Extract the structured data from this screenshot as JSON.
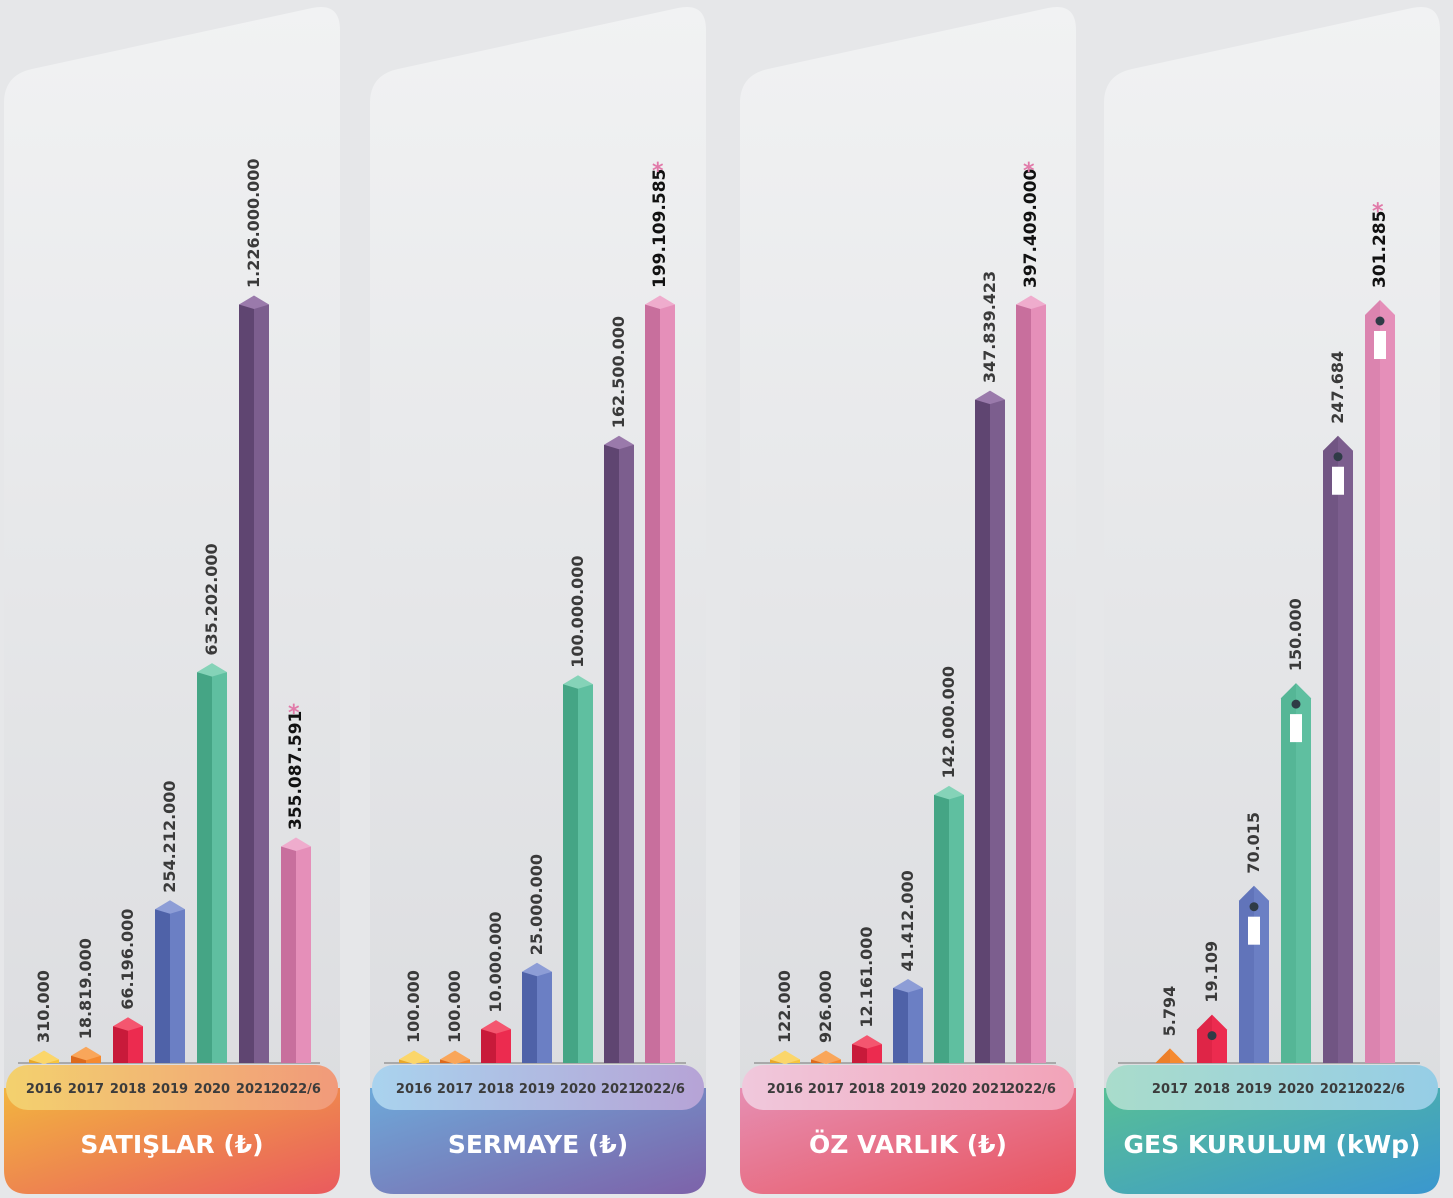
{
  "colors": {
    "2016": [
      "#f6c43e",
      "#e8a82a",
      "#fbd66a"
    ],
    "2017": [
      "#f58a30",
      "#dd6a1c",
      "#f9a65a"
    ],
    "2018": [
      "#ec2b4f",
      "#c81a3a",
      "#f4566f"
    ],
    "2019": [
      "#6b7fc4",
      "#4f62a8",
      "#8d9dd6"
    ],
    "2020": [
      "#5fbfa0",
      "#45a585",
      "#85d3b8"
    ],
    "2021": [
      "#7c5e8e",
      "#5f4571",
      "#9a7aab"
    ],
    "2022/6": [
      "#e58fb9",
      "#c86f9d",
      "#efaccd"
    ]
  },
  "chart_data": [
    {
      "type": "bar",
      "title": "SATIŞLAR (₺)",
      "categories": [
        "2016",
        "2017",
        "2018",
        "2019",
        "2020",
        "2021",
        "2022/6"
      ],
      "values": [
        310000,
        18819000,
        66196000,
        254212000,
        635202000,
        1226000000,
        355087591
      ],
      "labels": [
        "310.000",
        "18.819.000",
        "66.196.000",
        "254.212.000",
        "635.202.000",
        "1.226.000.000",
        "355.087.591"
      ],
      "starred": [
        false,
        false,
        false,
        false,
        false,
        false,
        true
      ],
      "headerColors": [
        "#f3d16e",
        "#f19a7a"
      ],
      "footerColors": [
        "#f2b53f",
        "#ea5a5e"
      ]
    },
    {
      "type": "bar",
      "title": "SERMAYE (₺)",
      "categories": [
        "2016",
        "2017",
        "2018",
        "2019",
        "2020",
        "2021",
        "2022/6"
      ],
      "values": [
        100000,
        100000,
        10000000,
        25000000,
        100000000,
        162500000,
        199109585
      ],
      "labels": [
        "100.000",
        "100.000",
        "10.000.000",
        "25.000.000",
        "100.000.000",
        "162.500.000",
        "199.109.585"
      ],
      "starred": [
        false,
        false,
        false,
        false,
        false,
        false,
        true
      ],
      "headerColors": [
        "#a9d3ee",
        "#b6a3d6"
      ],
      "footerColors": [
        "#6ea9d9",
        "#7d62a9"
      ]
    },
    {
      "type": "bar",
      "title": "ÖZ VARLIK (₺)",
      "categories": [
        "2016",
        "2017",
        "2018",
        "2019",
        "2020",
        "2021",
        "2022/6"
      ],
      "values": [
        122000,
        926000,
        12161000,
        41412000,
        142000000,
        347839423,
        397409000
      ],
      "labels": [
        "122.000",
        "926.000",
        "12.161.000",
        "41.412.000",
        "142.000.000",
        "347.839.423",
        "397.409.000"
      ],
      "starred": [
        false,
        false,
        false,
        false,
        false,
        false,
        true
      ],
      "headerColors": [
        "#f0c8dc",
        "#f2a3b8"
      ],
      "footerColors": [
        "#e68fb3",
        "#e9545f"
      ]
    },
    {
      "type": "bar",
      "title": "GES KURULUM (kWp)",
      "categories": [
        "2017",
        "2018",
        "2019",
        "2020",
        "2021",
        "2022/6"
      ],
      "values": [
        5794,
        19109,
        70015,
        150000,
        247684,
        301285
      ],
      "labels": [
        "5.794",
        "19.109",
        "70.015",
        "150.000",
        "247.684",
        "301.285"
      ],
      "starred": [
        false,
        false,
        false,
        false,
        false,
        true
      ],
      "headerColors": [
        "#a9dccb",
        "#96cde6"
      ],
      "footerColors": [
        "#58bf96",
        "#3a97cf"
      ]
    }
  ]
}
